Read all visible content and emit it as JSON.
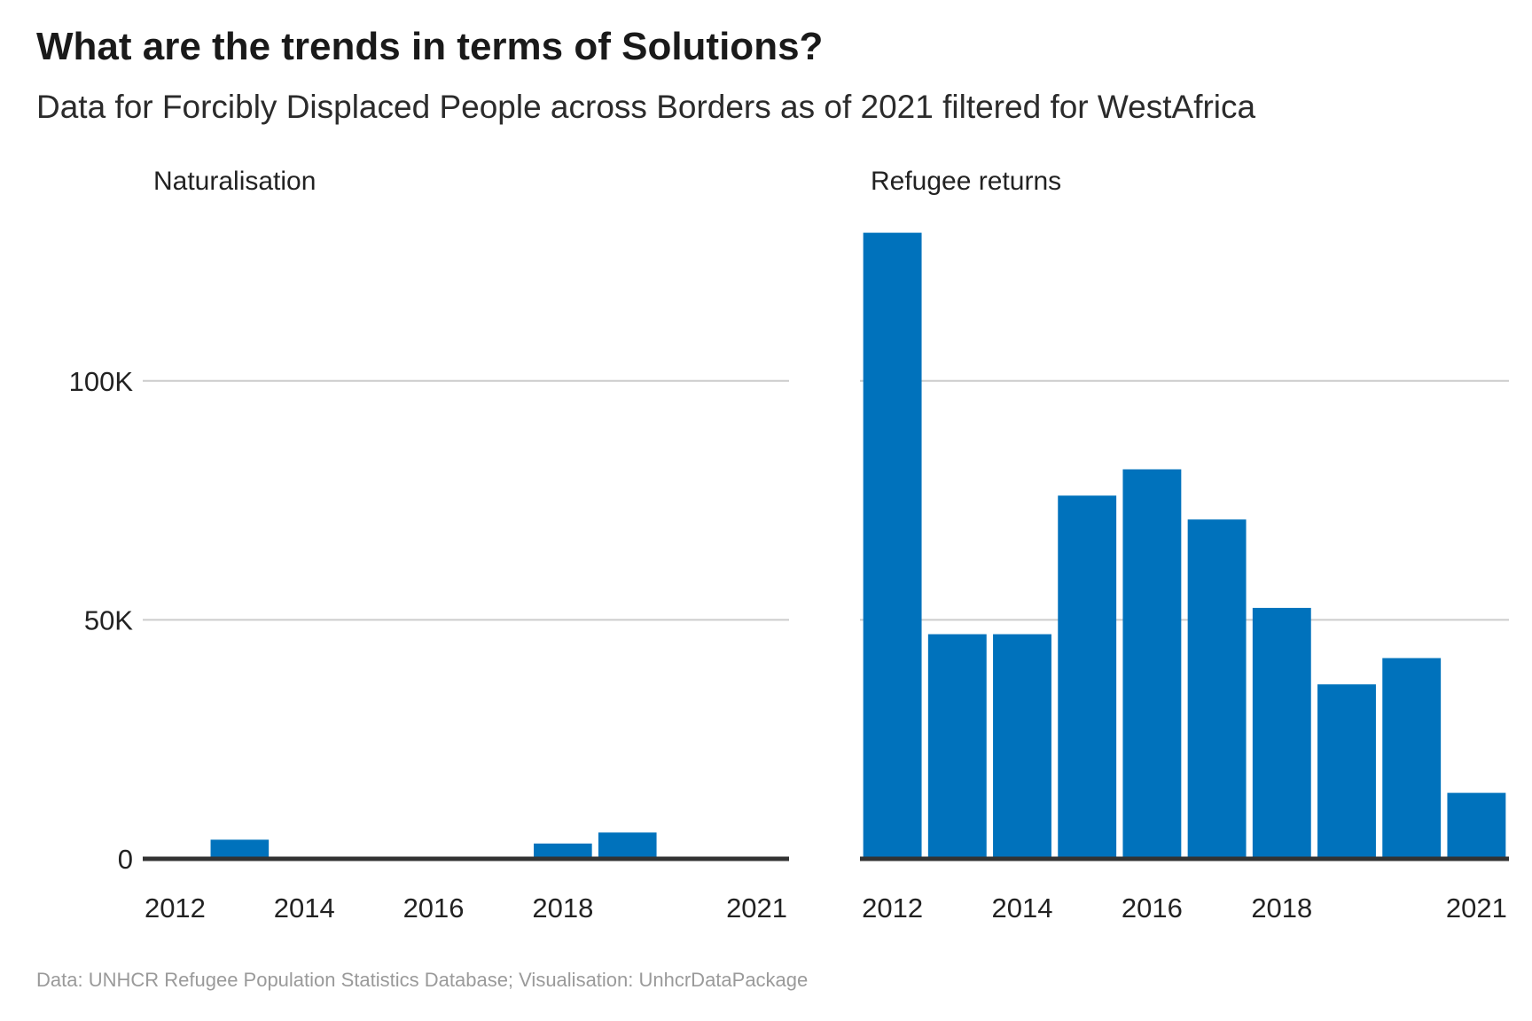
{
  "title": "What are the trends in terms of Solutions?",
  "subtitle": "Data for Forcibly Displaced People across Borders as of 2021 filtered for WestAfrica",
  "caption": "Data: UNHCR Refugee Population Statistics Database; Visualisation: UnhcrDataPackage",
  "colors": {
    "bar": "#0072bc",
    "grid": "#cccccc",
    "baseline": "#333333"
  },
  "chart_data": [
    {
      "type": "bar",
      "title": "Naturalisation",
      "categories": [
        "2012",
        "2013",
        "2014",
        "2015",
        "2016",
        "2017",
        "2018",
        "2019",
        "2020",
        "2021"
      ],
      "values": [
        0,
        4000,
        0,
        0,
        0,
        0,
        3200,
        5500,
        0,
        0
      ],
      "x_tick_labels": [
        "2012",
        "2014",
        "2016",
        "2018",
        "2021"
      ],
      "y_tick_labels": [
        "0",
        "50K",
        "100K"
      ],
      "ylim": [
        0,
        130000
      ],
      "grid": true
    },
    {
      "type": "bar",
      "title": "Refugee returns",
      "categories": [
        "2012",
        "2013",
        "2014",
        "2015",
        "2016",
        "2017",
        "2018",
        "2019",
        "2020",
        "2021"
      ],
      "values": [
        131000,
        47000,
        47000,
        76000,
        81500,
        71000,
        52500,
        36500,
        42000,
        13800
      ],
      "x_tick_labels": [
        "2012",
        "2014",
        "2016",
        "2018",
        "2021"
      ],
      "y_tick_labels": [
        "0",
        "50K",
        "100K"
      ],
      "ylim": [
        0,
        130000
      ],
      "grid": true
    }
  ]
}
